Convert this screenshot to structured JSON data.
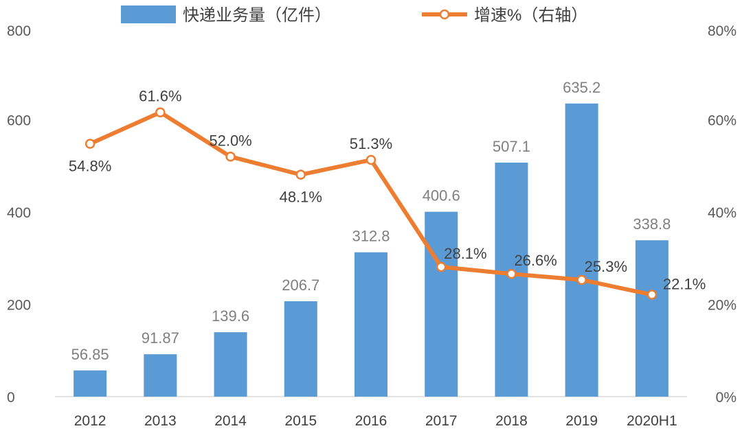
{
  "chart_data": {
    "type": "bar+line",
    "categories": [
      "2012",
      "2013",
      "2014",
      "2015",
      "2016",
      "2017",
      "2018",
      "2019",
      "2020H1"
    ],
    "series": [
      {
        "name": "快递业务量（亿件）",
        "type": "bar",
        "axis": "left",
        "color": "#5b9bd5",
        "values": [
          56.85,
          91.87,
          139.6,
          206.7,
          312.8,
          400.6,
          507.1,
          635.2,
          338.8
        ],
        "labels": [
          "56.85",
          "91.87",
          "139.6",
          "206.7",
          "312.8",
          "400.6",
          "507.1",
          "635.2",
          "338.8"
        ]
      },
      {
        "name": "增速%（右轴）",
        "type": "line",
        "axis": "right",
        "color": "#ed7d31",
        "values": [
          54.8,
          61.6,
          52.0,
          48.1,
          51.3,
          28.1,
          26.6,
          25.3,
          22.1
        ],
        "labels": [
          "54.8%",
          "61.6%",
          "52.0%",
          "48.1%",
          "51.3%",
          "28.1%",
          "26.6%",
          "25.3%",
          "22.1%"
        ]
      }
    ],
    "y_left": {
      "min": 0,
      "max": 800,
      "ticks": [
        0,
        200,
        400,
        600,
        800
      ],
      "tick_labels": [
        "0",
        "200",
        "400",
        "600",
        "800"
      ]
    },
    "y_right": {
      "min": 0,
      "max": 80,
      "ticks": [
        0,
        20,
        40,
        60,
        80
      ],
      "tick_labels": [
        "0%",
        "20%",
        "40%",
        "60%",
        "80%"
      ]
    },
    "legend": {
      "position": "top"
    },
    "grid": false
  }
}
